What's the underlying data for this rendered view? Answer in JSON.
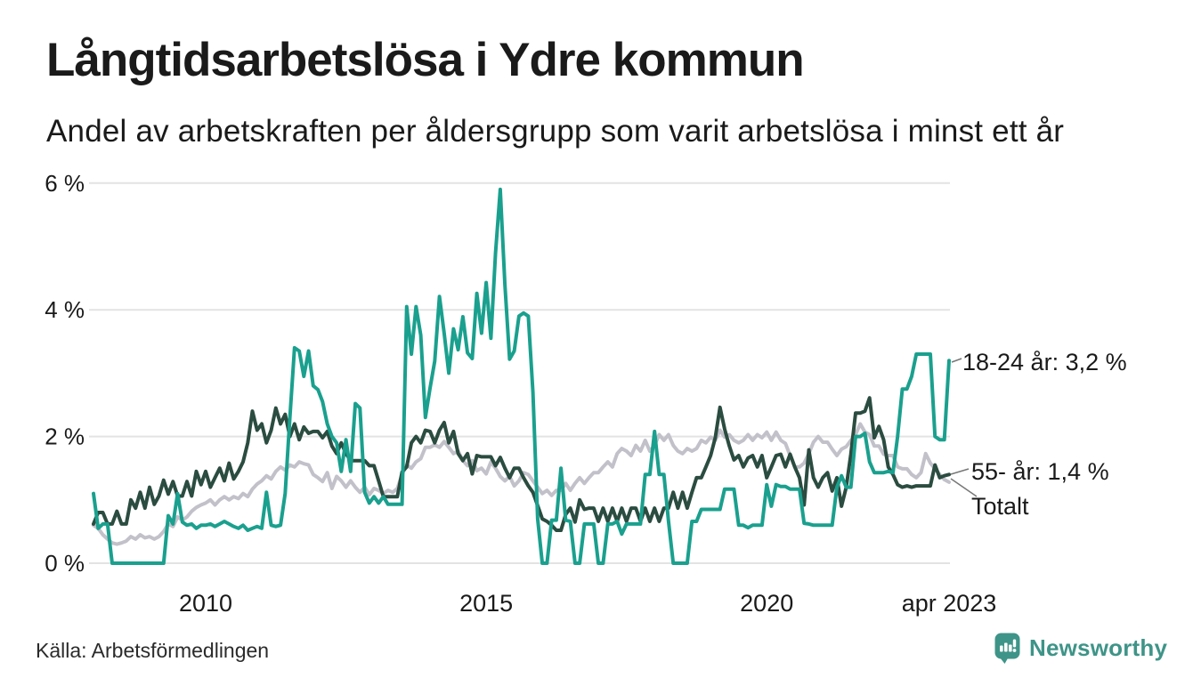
{
  "title": "Långtidsarbetslösa i Ydre kommun",
  "subtitle": "Andel av arbetskraften per åldersgrupp som varit arbetslösa i minst ett år",
  "source": "Källa: Arbetsförmedlingen",
  "branding": {
    "name": "Newsworthy",
    "color": "#3e9488"
  },
  "annotations": {
    "young_label": "18-24 år: 3,2 %",
    "old_label": "55- år: 1,4 %",
    "total_label": "Totalt"
  },
  "chart_data": {
    "type": "line",
    "title": "Långtidsarbetslösa i Ydre kommun",
    "subtitle": "Andel av arbetskraften per åldersgrupp som varit arbetslösa i minst ett år",
    "x_unit": "month",
    "x_start": "2008-01",
    "x_end": "2023-04",
    "ylim": [
      0,
      6
    ],
    "grid": "horizontal",
    "y_ticks": [
      {
        "value": 0,
        "label": "0 %"
      },
      {
        "value": 2,
        "label": "2 %"
      },
      {
        "value": 4,
        "label": "4 %"
      },
      {
        "value": 6,
        "label": "6 %"
      }
    ],
    "x_ticks": [
      {
        "month_index": 24,
        "label": "2010"
      },
      {
        "month_index": 84,
        "label": "2015"
      },
      {
        "month_index": 144,
        "label": "2020"
      },
      {
        "month_index": 183,
        "label": "apr 2023"
      }
    ],
    "series": [
      {
        "name": "Totalt",
        "color": "#c2c1ca",
        "values": [
          0.6,
          0.55,
          0.45,
          0.38,
          0.32,
          0.3,
          0.32,
          0.35,
          0.42,
          0.38,
          0.45,
          0.4,
          0.42,
          0.38,
          0.42,
          0.5,
          0.62,
          0.58,
          0.73,
          0.68,
          0.73,
          0.82,
          0.88,
          0.92,
          0.95,
          1.0,
          0.92,
          1.0,
          1.05,
          1.0,
          1.05,
          1.02,
          1.1,
          1.05,
          1.17,
          1.25,
          1.3,
          1.38,
          1.33,
          1.45,
          1.52,
          1.47,
          1.55,
          1.52,
          1.6,
          1.57,
          1.55,
          1.4,
          1.35,
          1.29,
          1.43,
          1.18,
          1.37,
          1.3,
          1.2,
          1.3,
          1.2,
          1.12,
          1.2,
          1.08,
          1.18,
          1.15,
          1.1,
          1.15,
          1.12,
          1.18,
          1.4,
          1.55,
          1.5,
          1.6,
          1.65,
          1.83,
          1.83,
          1.87,
          1.83,
          1.92,
          1.83,
          1.73,
          1.77,
          1.62,
          1.54,
          1.62,
          1.46,
          1.5,
          1.41,
          1.6,
          1.5,
          1.37,
          1.3,
          1.37,
          1.22,
          1.3,
          1.43,
          1.4,
          1.3,
          1.2,
          1.1,
          1.15,
          1.07,
          1.15,
          1.15,
          1.26,
          1.15,
          1.26,
          1.35,
          1.26,
          1.35,
          1.43,
          1.43,
          1.52,
          1.6,
          1.52,
          1.73,
          1.81,
          1.77,
          1.7,
          1.86,
          1.77,
          1.94,
          1.77,
          1.86,
          2.03,
          1.94,
          2.03,
          1.86,
          1.77,
          1.73,
          1.81,
          1.77,
          1.81,
          1.94,
          1.9,
          1.99,
          1.94,
          2.1,
          1.99,
          2.03,
          1.94,
          1.9,
          1.94,
          2.03,
          1.94,
          2.03,
          1.98,
          2.07,
          1.94,
          2.07,
          1.94,
          1.89,
          1.7,
          1.52,
          1.52,
          1.58,
          1.73,
          1.91,
          2.0,
          1.91,
          1.91,
          1.8,
          1.7,
          1.8,
          1.84,
          1.94,
          2.03,
          2.2,
          2.07,
          2.03,
          1.85,
          1.85,
          1.72,
          1.7,
          1.7,
          1.52,
          1.49,
          1.49,
          1.4,
          1.35,
          1.43,
          1.73,
          1.58,
          1.49,
          1.4,
          1.32,
          1.28
        ]
      },
      {
        "name": "55- år",
        "color": "#2b4c40",
        "end_value_label": "55- år: 1,4 %",
        "values": [
          0.62,
          0.8,
          0.8,
          0.62,
          0.62,
          0.82,
          0.62,
          0.62,
          1.0,
          0.87,
          1.12,
          0.87,
          1.2,
          0.93,
          1.06,
          1.31,
          1.09,
          1.29,
          1.06,
          1.06,
          1.29,
          1.06,
          1.45,
          1.24,
          1.45,
          1.2,
          1.35,
          1.5,
          1.3,
          1.58,
          1.33,
          1.45,
          1.6,
          1.9,
          2.4,
          2.1,
          2.2,
          1.9,
          2.1,
          2.45,
          2.2,
          2.35,
          2.0,
          2.2,
          1.95,
          2.15,
          2.05,
          2.08,
          2.08,
          1.98,
          2.08,
          1.85,
          1.73,
          1.9,
          1.73,
          1.62,
          1.62,
          1.62,
          1.62,
          1.54,
          1.54,
          1.3,
          1.05,
          1.05,
          1.05,
          1.05,
          1.44,
          1.52,
          1.9,
          2.0,
          1.9,
          2.1,
          2.08,
          1.9,
          2.1,
          2.22,
          1.9,
          2.08,
          1.73,
          1.62,
          1.73,
          1.41,
          1.7,
          1.68,
          1.68,
          1.68,
          1.54,
          1.67,
          1.5,
          1.35,
          1.5,
          1.5,
          1.35,
          1.22,
          1.12,
          0.91,
          0.7,
          0.66,
          0.6,
          0.52,
          0.52,
          0.77,
          0.87,
          0.65,
          1.0,
          0.85,
          0.87,
          0.87,
          0.66,
          0.87,
          0.66,
          0.87,
          0.66,
          0.87,
          0.66,
          0.87,
          0.87,
          0.66,
          0.87,
          0.66,
          0.87,
          0.66,
          0.87,
          0.87,
          1.12,
          0.87,
          1.12,
          0.87,
          1.12,
          1.35,
          1.35,
          1.52,
          1.7,
          1.98,
          2.46,
          2.12,
          1.85,
          1.63,
          1.7,
          1.52,
          1.66,
          1.7,
          1.52,
          1.7,
          1.35,
          1.52,
          1.7,
          1.72,
          1.52,
          1.72,
          1.52,
          1.35,
          0.92,
          1.79,
          1.35,
          1.2,
          1.35,
          1.43,
          1.14,
          1.35,
          0.9,
          1.2,
          1.72,
          2.37,
          2.37,
          2.4,
          2.61,
          1.98,
          2.16,
          1.95,
          1.52,
          1.4,
          1.24,
          1.2,
          1.22,
          1.2,
          1.22,
          1.22,
          1.22,
          1.22,
          1.55,
          1.35,
          1.38,
          1.4
        ]
      },
      {
        "name": "18-24 år",
        "color": "#1aa08e",
        "end_value_label": "18-24 år: 3,2 %",
        "values": [
          1.1,
          0.55,
          0.62,
          0.62,
          0,
          0,
          0,
          0,
          0,
          0,
          0,
          0,
          0,
          0,
          0,
          0,
          0.75,
          0.62,
          1.1,
          0.65,
          0.6,
          0.62,
          0.55,
          0.6,
          0.6,
          0.62,
          0.58,
          0.62,
          0.66,
          0.62,
          0.58,
          0.55,
          0.6,
          0.52,
          0.55,
          0.58,
          0.55,
          1.12,
          0.6,
          0.58,
          0.6,
          1.1,
          2.3,
          3.4,
          3.35,
          2.95,
          3.35,
          2.8,
          2.74,
          2.55,
          2.2,
          2.0,
          1.9,
          1.45,
          1.95,
          1.45,
          2.52,
          2.45,
          1.12,
          0.95,
          1.05,
          0.95,
          1.05,
          0.93,
          0.93,
          0.93,
          0.93,
          4.05,
          3.3,
          4.05,
          3.6,
          2.3,
          2.77,
          3.19,
          4.21,
          3.63,
          3.0,
          3.7,
          3.37,
          3.89,
          3.32,
          3.23,
          4.26,
          3.63,
          4.43,
          3.55,
          4.9,
          5.9,
          4.4,
          3.22,
          3.35,
          3.9,
          3.95,
          3.9,
          2.7,
          0.7,
          0,
          0,
          0.68,
          0.68,
          1.5,
          0.68,
          0.66,
          0,
          0,
          0.62,
          0.62,
          0.62,
          0,
          0,
          0.62,
          0.62,
          0.66,
          0.46,
          0.62,
          0.62,
          0.62,
          0.62,
          1.4,
          1.4,
          2.08,
          1.4,
          1.4,
          0.66,
          0,
          0,
          0,
          0,
          0.66,
          0.66,
          0.85,
          0.85,
          0.85,
          0.85,
          0.85,
          1.17,
          1.17,
          1.17,
          0.6,
          0.6,
          0.56,
          0.6,
          0.6,
          0.6,
          1.24,
          0.9,
          1.24,
          1.21,
          1.21,
          1.17,
          1.17,
          1.17,
          0.63,
          0.62,
          0.6,
          0.6,
          0.6,
          0.6,
          0.6,
          1.2,
          1.38,
          1.2,
          1.2,
          2.0,
          2.0,
          2.05,
          1.6,
          1.43,
          1.43,
          1.43,
          1.45,
          1.43,
          2.0,
          2.75,
          2.75,
          2.95,
          3.3,
          3.3,
          3.3,
          3.3,
          2.0,
          1.95,
          1.95,
          3.2
        ]
      }
    ],
    "annotation_colors": {
      "grid": "#e3e3e3",
      "connector": "#777777"
    }
  }
}
